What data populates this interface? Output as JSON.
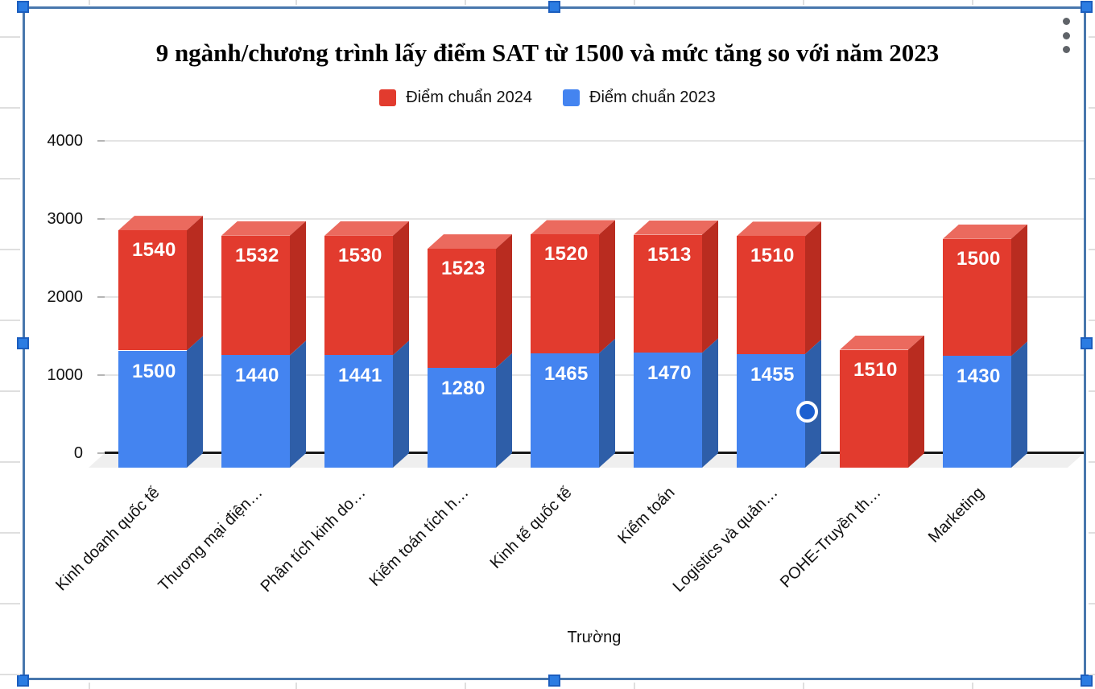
{
  "chart_data": {
    "type": "bar",
    "stacked": true,
    "title": "9 ngành/chương trình lấy điểm SAT từ 1500 và mức tăng so với năm 2023",
    "xlabel": "Trường",
    "ylabel": "",
    "categories": [
      "Kinh doanh quốc tế",
      "Thương mại điện…",
      "Phân tích kinh do…",
      "Kiểm toán tích h…",
      "Kinh tế quốc tế",
      "Kiểm toán",
      "Logistics và quản…",
      "POHE-Truyền th…",
      "Marketing"
    ],
    "series": [
      {
        "name": "Điểm chuẩn 2024",
        "stack_position": "top",
        "color": "#e23b2e",
        "color_top_face": "#eb6a5e",
        "color_side_face": "#b92c20",
        "values": [
          1540,
          1532,
          1530,
          1523,
          1520,
          1513,
          1510,
          1510,
          1500
        ]
      },
      {
        "name": "Điểm chuẩn 2023",
        "stack_position": "bottom",
        "color": "#4484f0",
        "color_top_face": "#7aa6f4",
        "color_side_face": "#2e5ea8",
        "values": [
          1500,
          1440,
          1441,
          1280,
          1465,
          1470,
          1455,
          null,
          1430
        ]
      }
    ],
    "data_labels_shown": true,
    "y_ticks": [
      0,
      1000,
      2000,
      3000,
      4000
    ],
    "ylim": [
      0,
      4000
    ],
    "grid": true,
    "legend_position": "top",
    "legend_order": [
      "Điểm chuẩn 2024",
      "Điểm chuẩn 2023"
    ]
  },
  "ui": {
    "legend": [
      {
        "label": "Điểm chuẩn 2024",
        "color": "#e23b2e"
      },
      {
        "label": "Điểm chuẩn 2023",
        "color": "#4484f0"
      }
    ],
    "menu_icon": "kebab-vertical",
    "selection": {
      "handle_color": "#2b7ce2",
      "border_color": "#4877ad",
      "handles": [
        "top-left",
        "top-center",
        "top-right",
        "middle-left",
        "middle-right",
        "bottom-left",
        "bottom-center",
        "bottom-right"
      ]
    },
    "highlight_point": {
      "series": "Điểm chuẩn 2023",
      "category": "Logistics và quản…"
    }
  }
}
